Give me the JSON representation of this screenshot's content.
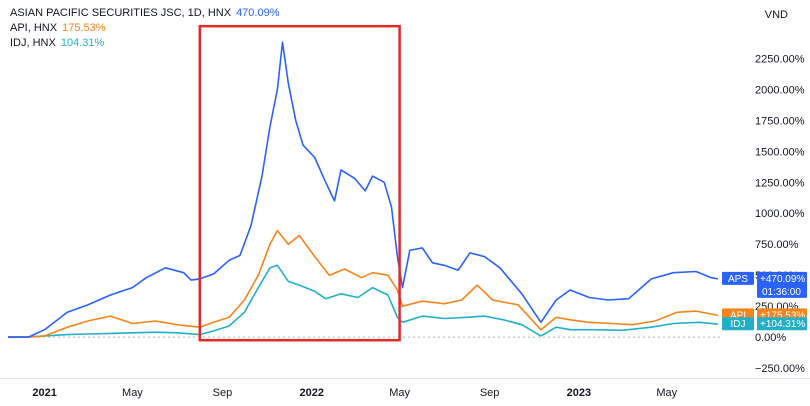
{
  "currency_label": "VND",
  "chart_data": {
    "type": "line",
    "scale": "percent",
    "y_ticks": [
      -250,
      0,
      250,
      500,
      750,
      1000,
      1250,
      1500,
      1750,
      2000,
      2250
    ],
    "y_tick_labels": [
      "−250.00%",
      "0.00%",
      "250.00%",
      "500.00%",
      "750.00%",
      "1000.00%",
      "1250.00%",
      "1500.00%",
      "1750.00%",
      "2000.00%",
      "2250.00%"
    ],
    "ylim": [
      -330,
      2560
    ],
    "x_start": "2020-11-12",
    "x_end": "2023-07-10",
    "x_ticks": [
      {
        "date": "2021-01-01",
        "label": "2021",
        "bold": true
      },
      {
        "date": "2021-05-01",
        "label": "May",
        "bold": false
      },
      {
        "date": "2021-09-01",
        "label": "Sep",
        "bold": false
      },
      {
        "date": "2022-01-01",
        "label": "2022",
        "bold": true
      },
      {
        "date": "2022-05-01",
        "label": "May",
        "bold": false
      },
      {
        "date": "2022-09-01",
        "label": "Sep",
        "bold": false
      },
      {
        "date": "2023-01-01",
        "label": "2023",
        "bold": true
      },
      {
        "date": "2023-05-01",
        "label": "May",
        "bold": false
      }
    ],
    "highlight_box": {
      "x_from": "2021-08-01",
      "x_to": "2022-05-01",
      "y_from": -25,
      "y_to": 2510,
      "color": "#e02b2b"
    },
    "series": [
      {
        "name": "ASIAN PACIFIC SECURITIES JSC, 1D, HNX",
        "symbol": "APS",
        "legend_value": "470.09%",
        "badge": "+470.09%",
        "badge_sub": "01:36:00",
        "color": "#2962ff",
        "points": [
          [
            "2020-11-12",
            0
          ],
          [
            "2020-12-10",
            0
          ],
          [
            "2021-01-01",
            60
          ],
          [
            "2021-02-01",
            200
          ],
          [
            "2021-03-01",
            260
          ],
          [
            "2021-04-01",
            340
          ],
          [
            "2021-05-01",
            400
          ],
          [
            "2021-05-20",
            480
          ],
          [
            "2021-06-15",
            560
          ],
          [
            "2021-07-10",
            520
          ],
          [
            "2021-07-20",
            460
          ],
          [
            "2021-08-01",
            470
          ],
          [
            "2021-08-20",
            510
          ],
          [
            "2021-09-10",
            620
          ],
          [
            "2021-09-25",
            660
          ],
          [
            "2021-10-10",
            900
          ],
          [
            "2021-10-25",
            1300
          ],
          [
            "2021-11-05",
            1700
          ],
          [
            "2021-11-15",
            2000
          ],
          [
            "2021-11-22",
            2380
          ],
          [
            "2021-11-30",
            2050
          ],
          [
            "2021-12-10",
            1750
          ],
          [
            "2021-12-20",
            1550
          ],
          [
            "2022-01-05",
            1450
          ],
          [
            "2022-01-20",
            1250
          ],
          [
            "2022-02-01",
            1100
          ],
          [
            "2022-02-10",
            1350
          ],
          [
            "2022-03-01",
            1280
          ],
          [
            "2022-03-15",
            1180
          ],
          [
            "2022-03-25",
            1300
          ],
          [
            "2022-04-10",
            1250
          ],
          [
            "2022-04-20",
            1050
          ],
          [
            "2022-04-28",
            650
          ],
          [
            "2022-05-05",
            400
          ],
          [
            "2022-05-15",
            700
          ],
          [
            "2022-06-01",
            720
          ],
          [
            "2022-06-15",
            600
          ],
          [
            "2022-07-01",
            580
          ],
          [
            "2022-07-20",
            540
          ],
          [
            "2022-08-05",
            680
          ],
          [
            "2022-08-25",
            650
          ],
          [
            "2022-09-15",
            560
          ],
          [
            "2022-10-15",
            350
          ],
          [
            "2022-11-10",
            120
          ],
          [
            "2022-12-01",
            300
          ],
          [
            "2022-12-20",
            380
          ],
          [
            "2023-01-15",
            320
          ],
          [
            "2023-02-10",
            300
          ],
          [
            "2023-03-10",
            310
          ],
          [
            "2023-04-10",
            470
          ],
          [
            "2023-05-10",
            520
          ],
          [
            "2023-06-10",
            530
          ],
          [
            "2023-07-01",
            480
          ],
          [
            "2023-07-10",
            470.09
          ]
        ]
      },
      {
        "name": "API, HNX",
        "symbol": "API",
        "legend_value": "175.53%",
        "badge": "+175.53%",
        "color": "#f7841b",
        "points": [
          [
            "2020-11-12",
            0
          ],
          [
            "2020-12-10",
            0
          ],
          [
            "2021-01-01",
            10
          ],
          [
            "2021-02-01",
            80
          ],
          [
            "2021-03-01",
            130
          ],
          [
            "2021-04-01",
            170
          ],
          [
            "2021-05-01",
            110
          ],
          [
            "2021-06-01",
            130
          ],
          [
            "2021-07-01",
            100
          ],
          [
            "2021-08-01",
            80
          ],
          [
            "2021-08-20",
            120
          ],
          [
            "2021-09-10",
            160
          ],
          [
            "2021-10-01",
            300
          ],
          [
            "2021-10-20",
            500
          ],
          [
            "2021-11-05",
            750
          ],
          [
            "2021-11-15",
            860
          ],
          [
            "2021-11-30",
            750
          ],
          [
            "2021-12-15",
            820
          ],
          [
            "2022-01-05",
            650
          ],
          [
            "2022-01-25",
            500
          ],
          [
            "2022-02-15",
            550
          ],
          [
            "2022-03-10",
            480
          ],
          [
            "2022-03-25",
            520
          ],
          [
            "2022-04-15",
            500
          ],
          [
            "2022-04-28",
            380
          ],
          [
            "2022-05-05",
            250
          ],
          [
            "2022-06-01",
            290
          ],
          [
            "2022-07-01",
            270
          ],
          [
            "2022-07-25",
            300
          ],
          [
            "2022-08-15",
            420
          ],
          [
            "2022-09-05",
            300
          ],
          [
            "2022-10-10",
            260
          ],
          [
            "2022-11-10",
            60
          ],
          [
            "2022-12-01",
            160
          ],
          [
            "2022-12-20",
            140
          ],
          [
            "2023-01-15",
            120
          ],
          [
            "2023-02-15",
            110
          ],
          [
            "2023-03-15",
            100
          ],
          [
            "2023-04-15",
            130
          ],
          [
            "2023-05-15",
            200
          ],
          [
            "2023-06-10",
            210
          ],
          [
            "2023-07-10",
            175.53
          ]
        ]
      },
      {
        "name": "IDJ, HNX",
        "symbol": "IDJ",
        "legend_value": "104.31%",
        "badge": "+104.31%",
        "color": "#22b0c8",
        "points": [
          [
            "2020-11-12",
            0
          ],
          [
            "2020-12-10",
            0
          ],
          [
            "2021-01-01",
            10
          ],
          [
            "2021-02-01",
            20
          ],
          [
            "2021-03-01",
            25
          ],
          [
            "2021-04-01",
            30
          ],
          [
            "2021-05-01",
            35
          ],
          [
            "2021-06-01",
            40
          ],
          [
            "2021-07-01",
            35
          ],
          [
            "2021-08-01",
            20
          ],
          [
            "2021-08-20",
            50
          ],
          [
            "2021-09-10",
            90
          ],
          [
            "2021-10-01",
            200
          ],
          [
            "2021-10-20",
            400
          ],
          [
            "2021-11-05",
            560
          ],
          [
            "2021-11-15",
            580
          ],
          [
            "2021-11-30",
            450
          ],
          [
            "2021-12-15",
            420
          ],
          [
            "2022-01-05",
            370
          ],
          [
            "2022-01-20",
            310
          ],
          [
            "2022-02-10",
            350
          ],
          [
            "2022-03-05",
            320
          ],
          [
            "2022-03-25",
            400
          ],
          [
            "2022-04-15",
            340
          ],
          [
            "2022-04-28",
            160
          ],
          [
            "2022-05-05",
            120
          ],
          [
            "2022-06-01",
            170
          ],
          [
            "2022-07-01",
            150
          ],
          [
            "2022-08-01",
            160
          ],
          [
            "2022-08-25",
            170
          ],
          [
            "2022-09-20",
            140
          ],
          [
            "2022-10-15",
            100
          ],
          [
            "2022-11-10",
            10
          ],
          [
            "2022-12-01",
            80
          ],
          [
            "2022-12-20",
            60
          ],
          [
            "2023-01-20",
            60
          ],
          [
            "2023-03-01",
            55
          ],
          [
            "2023-04-10",
            80
          ],
          [
            "2023-05-10",
            110
          ],
          [
            "2023-06-15",
            120
          ],
          [
            "2023-07-10",
            104.31
          ]
        ]
      }
    ]
  }
}
